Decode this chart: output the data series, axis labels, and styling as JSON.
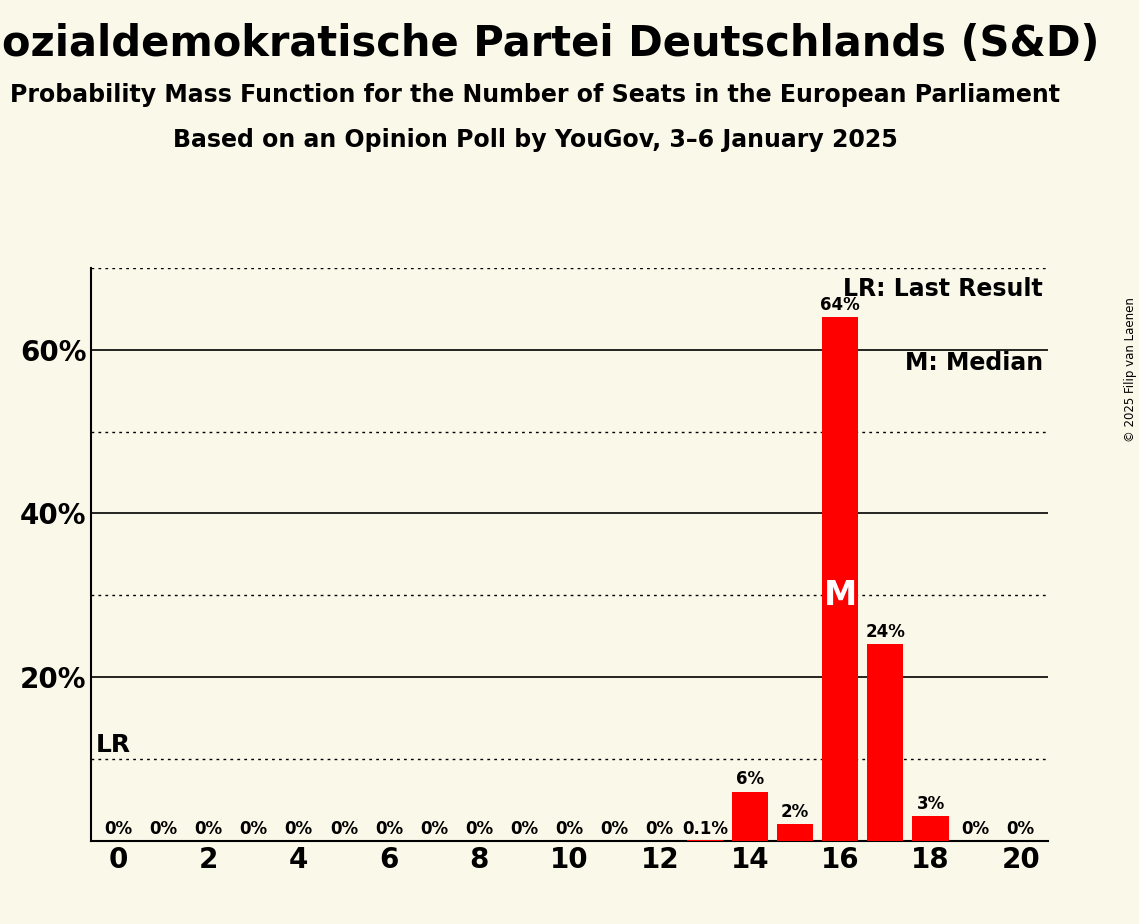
{
  "title": "Sozialdemokratische Partei Deutschlands (S&D)",
  "subtitle1": "Probability Mass Function for the Number of Seats in the European Parliament",
  "subtitle2": "Based on an Opinion Poll by YouGov, 3–6 January 2025",
  "copyright": "© 2025 Filip van Laenen",
  "x_min": -0.6,
  "x_max": 20.6,
  "y_min": 0,
  "y_max": 0.7,
  "bar_color": "#FF0000",
  "background_color": "#FAF8E8",
  "seats": [
    0,
    1,
    2,
    3,
    4,
    5,
    6,
    7,
    8,
    9,
    10,
    11,
    12,
    13,
    14,
    15,
    16,
    17,
    18,
    19,
    20
  ],
  "probs": [
    0,
    0,
    0,
    0,
    0,
    0,
    0,
    0,
    0,
    0,
    0,
    0,
    0,
    0.001,
    0.06,
    0.02,
    0.64,
    0.24,
    0.03,
    0,
    0
  ],
  "labels": [
    "0%",
    "0%",
    "0%",
    "0%",
    "0%",
    "0%",
    "0%",
    "0%",
    "0%",
    "0%",
    "0%",
    "0%",
    "0%",
    "0.1%",
    "6%",
    "2%",
    "64%",
    "24%",
    "3%",
    "0%",
    "0%"
  ],
  "median_seat": 16,
  "lr_seat": 14,
  "legend_lr": "LR: Last Result",
  "legend_m": "M: Median",
  "solid_gridlines": [
    0.2,
    0.4,
    0.6
  ],
  "dotted_gridlines": [
    0.1,
    0.3,
    0.5,
    0.7
  ],
  "yticks": [
    0.2,
    0.4,
    0.6
  ],
  "ytick_labels": [
    "20%",
    "40%",
    "60%"
  ],
  "xticks": [
    0,
    2,
    4,
    6,
    8,
    10,
    12,
    14,
    16,
    18,
    20
  ],
  "title_fontsize": 30,
  "subtitle_fontsize": 17,
  "label_fontsize": 12,
  "tick_fontsize": 20,
  "legend_fontsize": 17,
  "lr_label_fontsize": 18,
  "m_label_fontsize": 24
}
